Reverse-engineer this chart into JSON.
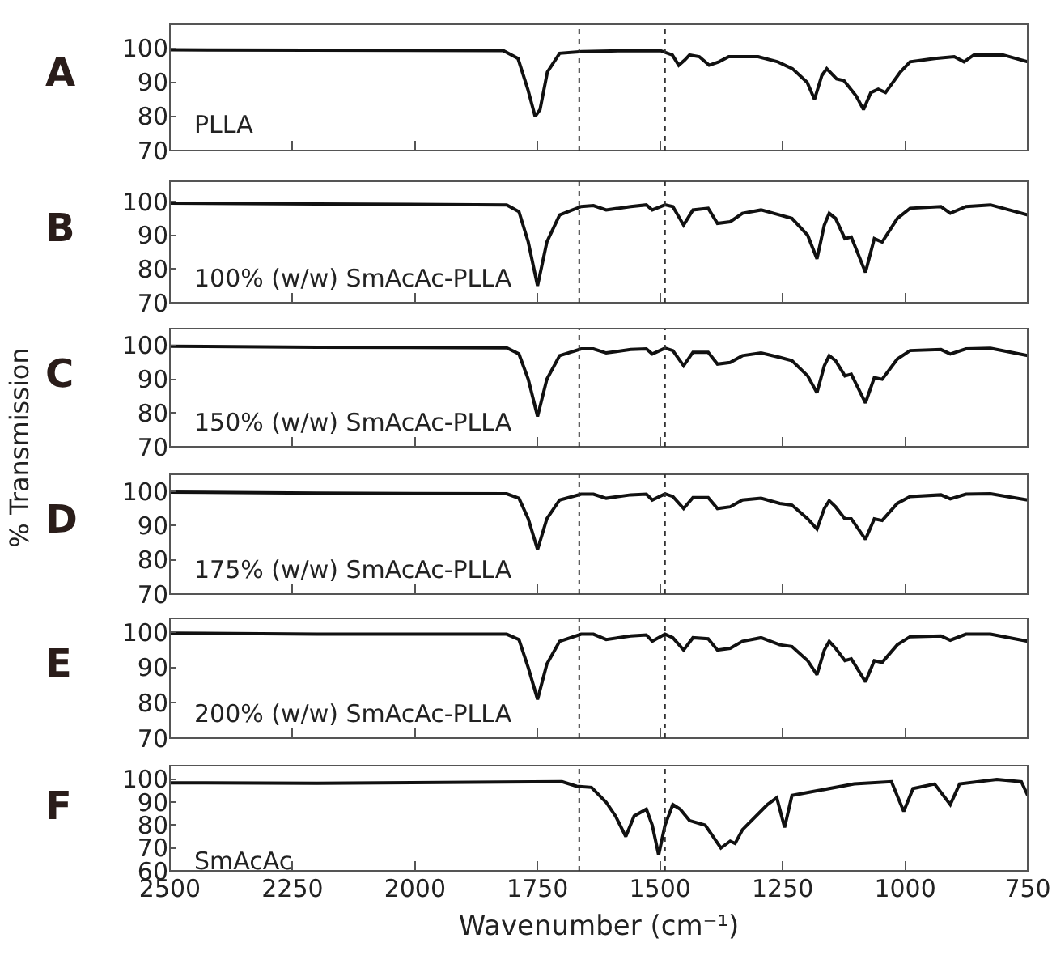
{
  "chart_data": [
    {
      "type": "line",
      "annotations": [
        "A",
        "PLLA"
      ],
      "x": [
        2500,
        1820,
        1790,
        1770,
        1755,
        1745,
        1730,
        1705,
        1660,
        1600,
        1500,
        1475,
        1462,
        1450,
        1440,
        1420,
        1400,
        1380,
        1360,
        1300,
        1260,
        1230,
        1200,
        1185,
        1170,
        1160,
        1140,
        1125,
        1100,
        1085,
        1070,
        1055,
        1040,
        1010,
        990,
        940,
        900,
        880,
        860,
        800,
        750
      ],
      "series": [
        {
          "color": "#111111",
          "values": [
            99.5,
            99.3,
            97,
            88,
            80,
            82,
            93,
            98.5,
            99,
            99.2,
            99.3,
            98,
            95,
            96.5,
            98,
            97.5,
            95,
            96,
            97.5,
            97.5,
            96,
            94,
            90,
            85,
            92,
            94,
            91,
            90.5,
            86,
            82,
            87,
            88,
            87,
            93,
            96,
            97,
            97.5,
            96,
            98,
            98,
            96
          ]
        }
      ],
      "xlim": [
        2500,
        750
      ],
      "xticks": [
        2500,
        2250,
        2000,
        1750,
        1500,
        1250,
        1000,
        750
      ],
      "ylim": [
        70,
        107
      ],
      "yticks": [
        70,
        80,
        90,
        100
      ],
      "tick_labels": "y",
      "grid": false,
      "ref_lines": [
        {
          "axis": "x",
          "value": 1665,
          "line_style": "dotted",
          "color": "#333333"
        },
        {
          "axis": "x",
          "value": 1490,
          "line_style": "dotted",
          "color": "#333333"
        }
      ]
    },
    {
      "type": "line",
      "annotations": [
        "B",
        "100% (w/w) SmAcAc-PLLA"
      ],
      "x": [
        2500,
        2200,
        1813,
        1788,
        1769,
        1750,
        1731,
        1705,
        1661,
        1636,
        1610,
        1560,
        1528,
        1516,
        1490,
        1474,
        1452,
        1433,
        1402,
        1383,
        1357,
        1332,
        1294,
        1256,
        1231,
        1199,
        1180,
        1165,
        1155,
        1142,
        1123,
        1110,
        1081,
        1063,
        1047,
        1016,
        990,
        927,
        908,
        876,
        826,
        750
      ],
      "series": [
        {
          "color": "#111111",
          "values": [
            99.5,
            99.3,
            99,
            97,
            88,
            75,
            88,
            96,
            98.5,
            98.8,
            97.5,
            98.5,
            99,
            97.5,
            99,
            98.5,
            93,
            97.5,
            98,
            93.5,
            94,
            96.5,
            97.5,
            96,
            95,
            90,
            83,
            93,
            96.5,
            95,
            89,
            89.5,
            79,
            89,
            88,
            95,
            98,
            98.5,
            96.5,
            98.5,
            99,
            96
          ]
        }
      ],
      "xlim": [
        2500,
        750
      ],
      "xticks": [
        2500,
        2250,
        2000,
        1750,
        1500,
        1250,
        1000,
        750
      ],
      "ylim": [
        70,
        106
      ],
      "yticks": [
        70,
        80,
        90,
        100
      ],
      "tick_labels": "y",
      "grid": false,
      "ref_lines": [
        {
          "axis": "x",
          "value": 1665,
          "line_style": "dotted",
          "color": "#333333"
        },
        {
          "axis": "x",
          "value": 1490,
          "line_style": "dotted",
          "color": "#333333"
        }
      ]
    },
    {
      "type": "line",
      "annotations": [
        "C",
        "150% (w/w) SmAcAc-PLLA"
      ],
      "ylabel": "% Transmission",
      "x": [
        2500,
        2200,
        1813,
        1788,
        1769,
        1750,
        1731,
        1705,
        1661,
        1636,
        1610,
        1560,
        1528,
        1516,
        1490,
        1474,
        1452,
        1433,
        1402,
        1383,
        1357,
        1332,
        1294,
        1256,
        1231,
        1199,
        1180,
        1165,
        1155,
        1142,
        1123,
        1110,
        1081,
        1063,
        1047,
        1016,
        990,
        927,
        908,
        876,
        826,
        750
      ],
      "series": [
        {
          "color": "#111111",
          "values": [
            99.8,
            99.5,
            99.3,
            97.5,
            90,
            79,
            90,
            97,
            99,
            99,
            97.8,
            98.8,
            99,
            97.5,
            99.2,
            98.5,
            94,
            98,
            98,
            94.5,
            95,
            97,
            97.8,
            96.5,
            95.5,
            91,
            86,
            94,
            97,
            95.5,
            91,
            91.5,
            83,
            90.5,
            90,
            96,
            98.5,
            98.8,
            97.5,
            99,
            99.2,
            97
          ]
        }
      ],
      "xlim": [
        2500,
        750
      ],
      "xticks": [
        2500,
        2250,
        2000,
        1750,
        1500,
        1250,
        1000,
        750
      ],
      "ylim": [
        70,
        105
      ],
      "yticks": [
        70,
        80,
        90,
        100
      ],
      "tick_labels": "y",
      "grid": false,
      "ref_lines": [
        {
          "axis": "x",
          "value": 1665,
          "line_style": "dotted",
          "color": "#333333"
        },
        {
          "axis": "x",
          "value": 1490,
          "line_style": "dotted",
          "color": "#333333"
        }
      ]
    },
    {
      "type": "line",
      "annotations": [
        "D",
        "175% (w/w) SmAcAc-PLLA"
      ],
      "x": [
        2500,
        2200,
        1813,
        1788,
        1769,
        1750,
        1731,
        1705,
        1661,
        1636,
        1610,
        1560,
        1528,
        1516,
        1490,
        1474,
        1452,
        1433,
        1402,
        1383,
        1357,
        1332,
        1294,
        1256,
        1231,
        1199,
        1180,
        1165,
        1155,
        1142,
        1123,
        1110,
        1081,
        1063,
        1047,
        1016,
        990,
        927,
        908,
        876,
        826,
        750
      ],
      "series": [
        {
          "color": "#111111",
          "values": [
            99.8,
            99.5,
            99.3,
            98,
            92,
            83,
            92,
            97.5,
            99.2,
            99.2,
            98,
            99,
            99.2,
            97.5,
            99.3,
            98.5,
            95,
            98.2,
            98.2,
            95,
            95.5,
            97.5,
            98,
            96.5,
            96,
            92,
            89,
            95,
            97.3,
            95.5,
            92,
            92,
            86,
            92,
            91.5,
            96.5,
            98.5,
            99,
            97.8,
            99.2,
            99.3,
            97.5
          ]
        }
      ],
      "xlim": [
        2500,
        750
      ],
      "xticks": [
        2500,
        2250,
        2000,
        1750,
        1500,
        1250,
        1000,
        750
      ],
      "ylim": [
        70,
        105
      ],
      "yticks": [
        70,
        80,
        90,
        100
      ],
      "tick_labels": "y",
      "grid": false,
      "ref_lines": [
        {
          "axis": "x",
          "value": 1665,
          "line_style": "dotted",
          "color": "#333333"
        },
        {
          "axis": "x",
          "value": 1490,
          "line_style": "dotted",
          "color": "#333333"
        }
      ]
    },
    {
      "type": "line",
      "annotations": [
        "E",
        "200% (w/w) SmAcAc-PLLA"
      ],
      "x": [
        2500,
        2200,
        1813,
        1788,
        1769,
        1750,
        1731,
        1705,
        1661,
        1636,
        1610,
        1560,
        1528,
        1516,
        1490,
        1474,
        1452,
        1433,
        1402,
        1383,
        1357,
        1332,
        1294,
        1256,
        1231,
        1199,
        1180,
        1165,
        1155,
        1142,
        1123,
        1110,
        1081,
        1063,
        1047,
        1016,
        990,
        927,
        908,
        876,
        826,
        750
      ],
      "series": [
        {
          "color": "#111111",
          "values": [
            99.8,
            99.5,
            99.5,
            98,
            90,
            81,
            91,
            97.5,
            99.5,
            99.5,
            98,
            99,
            99.3,
            97.5,
            99.5,
            98.5,
            95,
            98.5,
            98.2,
            95,
            95.5,
            97.5,
            98.5,
            96.5,
            96,
            92,
            88,
            95,
            97.5,
            95.5,
            92,
            92.5,
            86,
            92,
            91.5,
            96.5,
            98.8,
            99,
            97.8,
            99.5,
            99.5,
            97.5
          ]
        }
      ],
      "xlim": [
        2500,
        750
      ],
      "xticks": [
        2500,
        2250,
        2000,
        1750,
        1500,
        1250,
        1000,
        750
      ],
      "ylim": [
        70,
        104
      ],
      "yticks": [
        70,
        80,
        90,
        100
      ],
      "tick_labels": "y",
      "grid": false,
      "ref_lines": [
        {
          "axis": "x",
          "value": 1665,
          "line_style": "dotted",
          "color": "#333333"
        },
        {
          "axis": "x",
          "value": 1490,
          "line_style": "dotted",
          "color": "#333333"
        }
      ]
    },
    {
      "type": "line",
      "annotations": [
        "F",
        "SmAcAc"
      ],
      "xlabel": "Wavenumber (cm⁻¹)",
      "x": [
        2500,
        2200,
        1700,
        1670,
        1640,
        1610,
        1591,
        1570,
        1553,
        1528,
        1516,
        1503,
        1490,
        1474,
        1459,
        1440,
        1408,
        1376,
        1357,
        1347,
        1332,
        1281,
        1262,
        1246,
        1231,
        1180,
        1104,
        1028,
        1003,
        984,
        940,
        908,
        889,
        813,
        763,
        750
      ],
      "series": [
        {
          "color": "#111111",
          "values": [
            98.5,
            98.3,
            99,
            97,
            96.5,
            90,
            84,
            75,
            84,
            87,
            80,
            67,
            80,
            89,
            87,
            82,
            80,
            70,
            73,
            72,
            78,
            89,
            92,
            79,
            93,
            95,
            98,
            99,
            86,
            96,
            98,
            89,
            98,
            100,
            99,
            93
          ]
        }
      ],
      "xlim": [
        2500,
        750
      ],
      "xticks": [
        2500,
        2250,
        2000,
        1750,
        1500,
        1250,
        1000,
        750
      ],
      "ylim": [
        60,
        106
      ],
      "yticks": [
        60,
        70,
        80,
        90,
        100
      ],
      "grid": false,
      "ref_lines": [
        {
          "axis": "x",
          "value": 1665,
          "line_style": "dotted",
          "color": "#333333"
        },
        {
          "axis": "x",
          "value": 1490,
          "line_style": "dotted",
          "color": "#333333"
        }
      ]
    }
  ]
}
